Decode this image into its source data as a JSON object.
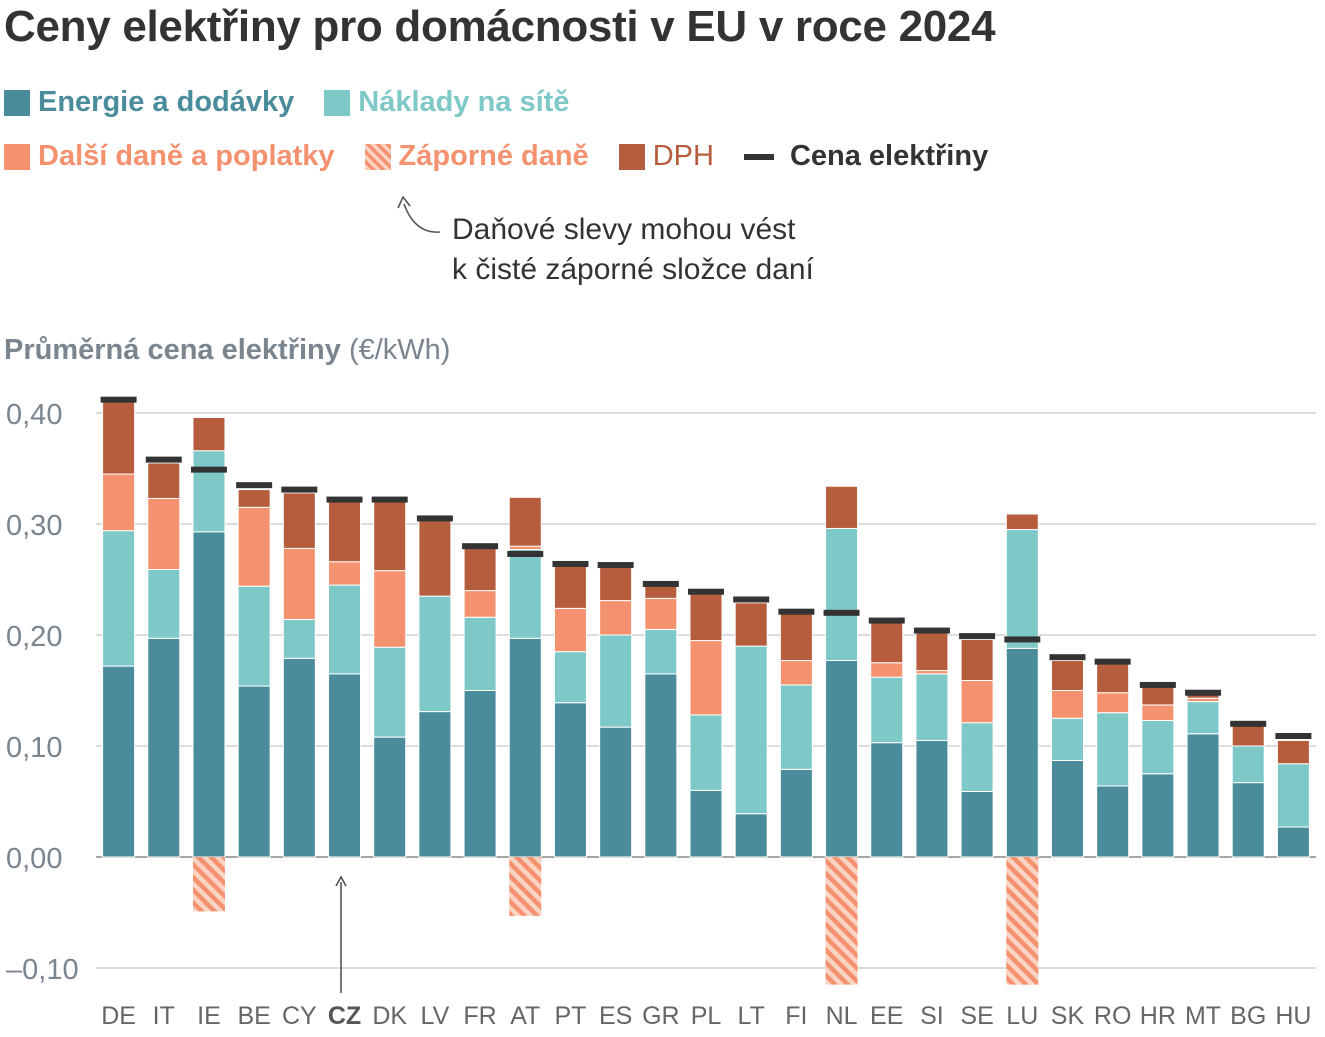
{
  "title": "Ceny elektřiny pro domácnosti v EU v roce 2024",
  "legend": {
    "energy": "Energie a dodávky",
    "network": "Náklady na sítě",
    "other_taxes": "Další daně a poplatky",
    "negative_taxes": "Záporné daně",
    "vat": "DPH",
    "price": "Cena elektřiny"
  },
  "annotation": {
    "line1": "Daňové slevy mohou vést",
    "line2": "k čisté záporné složce daní"
  },
  "axis_title": {
    "bold": "Průměrná cena elektřiny",
    "unit": "(€/kWh)"
  },
  "colors": {
    "energy": "#4a8c9c",
    "network": "#7fc8c8",
    "other_taxes": "#f4926f",
    "negative_taxes": "#f4926f",
    "vat": "#b55d3c",
    "price": "#333333",
    "grid": "#c8c8c8",
    "tick_text": "#7a8590"
  },
  "chart_data": {
    "type": "bar",
    "stacked": true,
    "categories": [
      "DE",
      "IT",
      "IE",
      "BE",
      "CY",
      "CZ",
      "DK",
      "LV",
      "FR",
      "AT",
      "PT",
      "ES",
      "GR",
      "PL",
      "LT",
      "FI",
      "NL",
      "EE",
      "SI",
      "SE",
      "LU",
      "SK",
      "RO",
      "HR",
      "MT",
      "BG",
      "HU"
    ],
    "highlight_category": "CZ",
    "ylim": [
      -0.1,
      0.4
    ],
    "yticks": [
      -0.1,
      0.0,
      0.1,
      0.2,
      0.3,
      0.4
    ],
    "ytick_labels": [
      "–0,10",
      "0,00",
      "0,10",
      "0,20",
      "0,30",
      "0,40"
    ],
    "grid": true,
    "series": [
      {
        "name": "Energie a dodávky",
        "values": [
          0.172,
          0.197,
          0.293,
          0.154,
          0.179,
          0.165,
          0.108,
          0.131,
          0.15,
          0.197,
          0.139,
          0.117,
          0.165,
          0.06,
          0.039,
          0.079,
          0.177,
          0.103,
          0.105,
          0.059,
          0.188,
          0.087,
          0.064,
          0.075,
          0.111,
          0.067,
          0.027
        ]
      },
      {
        "name": "Náklady na sítě",
        "values": [
          0.122,
          0.062,
          0.073,
          0.09,
          0.035,
          0.08,
          0.081,
          0.104,
          0.066,
          0.08,
          0.046,
          0.083,
          0.04,
          0.068,
          0.151,
          0.076,
          0.119,
          0.059,
          0.06,
          0.062,
          0.107,
          0.038,
          0.066,
          0.048,
          0.029,
          0.033,
          0.057
        ]
      },
      {
        "name": "Další daně a poplatky",
        "values": [
          0.051,
          0.064,
          0.0,
          0.071,
          0.064,
          0.021,
          0.069,
          0.0,
          0.024,
          0.003,
          0.039,
          0.031,
          0.028,
          0.067,
          0.0,
          0.022,
          0.0,
          0.013,
          0.003,
          0.038,
          0.0,
          0.025,
          0.018,
          0.014,
          0.003,
          0.0,
          0.0
        ]
      },
      {
        "name": "Záporné daně",
        "values": [
          0,
          0,
          -0.049,
          0,
          0,
          0,
          0,
          0,
          0,
          -0.053,
          0,
          0,
          0,
          0,
          0,
          0,
          -0.115,
          0,
          0,
          0,
          -0.115,
          0,
          0,
          0,
          0,
          0,
          0
        ]
      },
      {
        "name": "DPH",
        "values": [
          0.065,
          0.032,
          0.03,
          0.016,
          0.05,
          0.056,
          0.062,
          0.068,
          0.039,
          0.044,
          0.039,
          0.03,
          0.012,
          0.042,
          0.039,
          0.042,
          0.038,
          0.036,
          0.034,
          0.037,
          0.014,
          0.027,
          0.026,
          0.016,
          0.004,
          0.02,
          0.021
        ]
      }
    ],
    "price": [
      0.412,
      0.358,
      0.349,
      0.335,
      0.331,
      0.322,
      0.322,
      0.305,
      0.28,
      0.273,
      0.264,
      0.263,
      0.246,
      0.239,
      0.232,
      0.221,
      0.22,
      0.213,
      0.204,
      0.199,
      0.196,
      0.18,
      0.176,
      0.155,
      0.148,
      0.12,
      0.109
    ]
  }
}
